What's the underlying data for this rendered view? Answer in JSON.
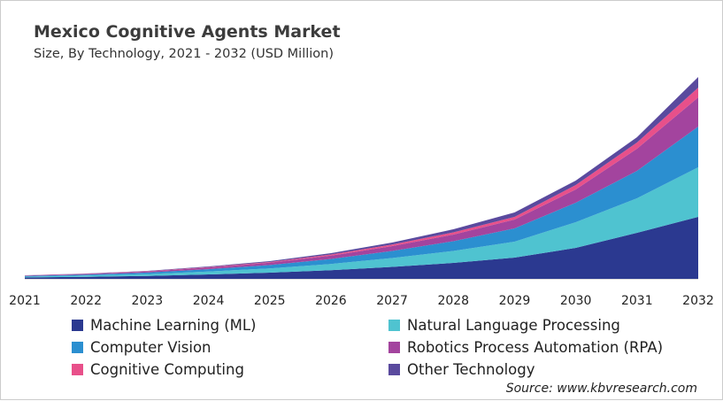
{
  "title": "Mexico Cognitive Agents Market",
  "subtitle": "Size, By Technology, 2021 - 2032 (USD Million)",
  "source": "Source: www.kbvresearch.com",
  "chart_data": {
    "type": "area",
    "stacked": true,
    "title": "Mexico Cognitive Agents Market",
    "subtitle": "Size, By Technology, 2021 - 2032 (USD Million)",
    "categories": [
      "2021",
      "2022",
      "2023",
      "2024",
      "2025",
      "2026",
      "2027",
      "2028",
      "2029",
      "2030",
      "2031",
      "2032"
    ],
    "y_axis_shown": false,
    "ylim": [
      0,
      230
    ],
    "grid": false,
    "legend_position": "bottom",
    "series": [
      {
        "name": "Machine Learning (ML)",
        "color": "#2b3990",
        "values": [
          1.6,
          2.3,
          3.3,
          5,
          7,
          9.8,
          13.5,
          18,
          24,
          35,
          52,
          70
        ]
      },
      {
        "name": "Natural Language Processing",
        "color": "#4fc3d0",
        "values": [
          0.9,
          1.4,
          2.1,
          3.3,
          4.8,
          7,
          10,
          13.5,
          18,
          29,
          39,
          56
        ]
      },
      {
        "name": "Computer Vision",
        "color": "#2b8fd0",
        "values": [
          0.7,
          1.1,
          1.7,
          2.6,
          3.8,
          5.6,
          8,
          11,
          15,
          22,
          31,
          46
        ]
      },
      {
        "name": "Robotics Process Automation (RPA)",
        "color": "#a3449e",
        "values": [
          0.5,
          0.7,
          1.1,
          1.8,
          2.6,
          3.8,
          5.5,
          7.5,
          10,
          15,
          25,
          33
        ]
      },
      {
        "name": "Cognitive Computing",
        "color": "#e8508a",
        "values": [
          0.15,
          0.2,
          0.4,
          0.6,
          0.8,
          1.3,
          1.8,
          2.5,
          3,
          5,
          7,
          11
        ]
      },
      {
        "name": "Other Technology",
        "color": "#5a4a9e",
        "values": [
          0.15,
          0.3,
          0.4,
          0.7,
          1,
          1.5,
          2.2,
          3.5,
          5,
          5,
          6,
          12
        ]
      }
    ]
  }
}
